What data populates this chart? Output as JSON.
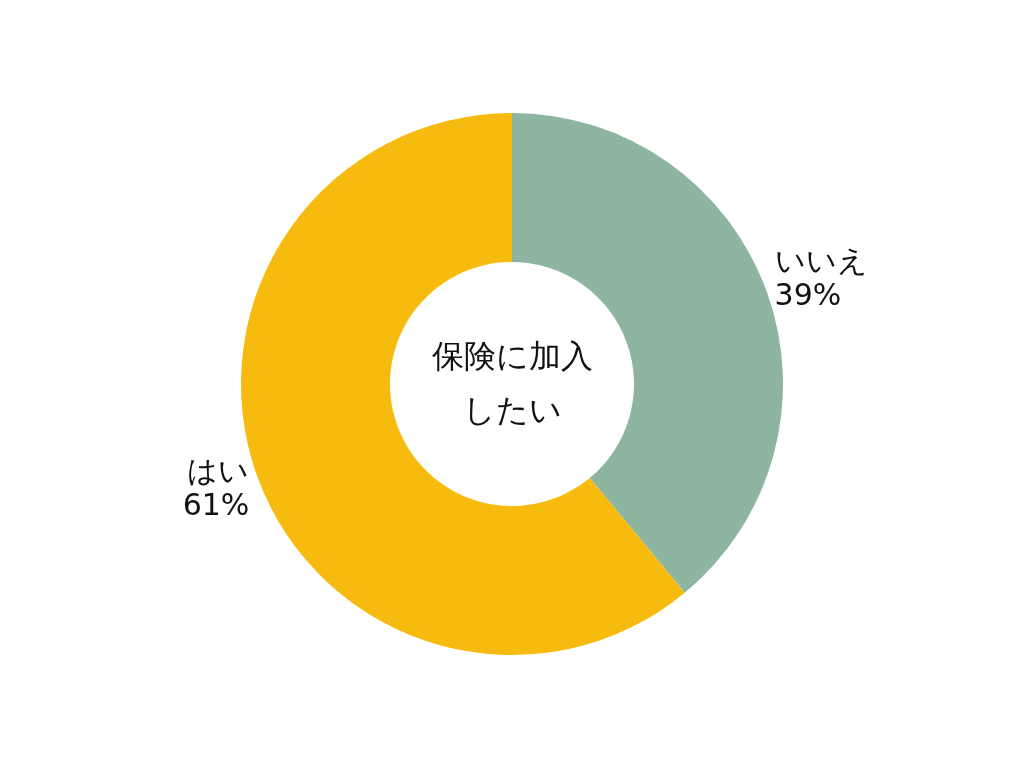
{
  "chart_data": {
    "type": "donut",
    "title": "保険に加入したい",
    "categories": [
      "いいえ",
      "はい"
    ],
    "values": [
      39,
      61
    ],
    "colors": [
      "#8db5a0",
      "#f6bb0e"
    ],
    "value_labels": [
      "39%",
      "61%"
    ]
  }
}
